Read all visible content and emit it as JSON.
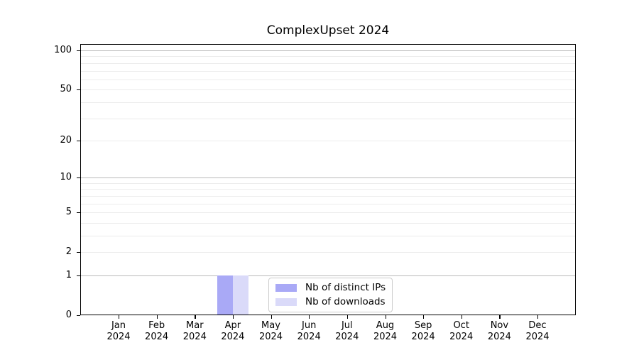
{
  "chart_data": {
    "type": "bar",
    "title": "ComplexUpset 2024",
    "xlabel": "",
    "ylabel": "",
    "categories": [
      {
        "month": "Jan",
        "year": "2024"
      },
      {
        "month": "Feb",
        "year": "2024"
      },
      {
        "month": "Mar",
        "year": "2024"
      },
      {
        "month": "Apr",
        "year": "2024"
      },
      {
        "month": "May",
        "year": "2024"
      },
      {
        "month": "Jun",
        "year": "2024"
      },
      {
        "month": "Jul",
        "year": "2024"
      },
      {
        "month": "Aug",
        "year": "2024"
      },
      {
        "month": "Sep",
        "year": "2024"
      },
      {
        "month": "Oct",
        "year": "2024"
      },
      {
        "month": "Nov",
        "year": "2024"
      },
      {
        "month": "Dec",
        "year": "2024"
      }
    ],
    "series": [
      {
        "name": "Nb of distinct IPs",
        "color": "#a9a9f6",
        "values": [
          0,
          0,
          0,
          1,
          0,
          0,
          0,
          0,
          0,
          0,
          0,
          0
        ]
      },
      {
        "name": "Nb of downloads",
        "color": "#dadaf9",
        "values": [
          0,
          0,
          0,
          1,
          0,
          0,
          0,
          0,
          0,
          0,
          0,
          0
        ]
      }
    ],
    "yscale": "log1p",
    "ylim": [
      0,
      100
    ],
    "yticks": [
      {
        "value": 0,
        "label": "0"
      },
      {
        "value": 1,
        "label": "1"
      },
      {
        "value": 2,
        "label": "2"
      },
      {
        "value": 5,
        "label": "5"
      },
      {
        "value": 10,
        "label": "10"
      },
      {
        "value": 20,
        "label": "20"
      },
      {
        "value": 50,
        "label": "50"
      },
      {
        "value": 100,
        "label": "100"
      }
    ],
    "major_gridline_values": [
      1,
      10,
      100
    ],
    "minor_gridline_values": [
      2,
      3,
      4,
      5,
      6,
      7,
      8,
      9,
      20,
      30,
      40,
      50,
      60,
      70,
      80,
      90
    ],
    "grid": "horizontal",
    "legend_position": "inside-bottom-center",
    "colors": {
      "grid_major": "#b9b9b9",
      "grid_minor": "#ececec",
      "axis": "#000000",
      "tick_text": "#000000",
      "legend_border": "#cccccc",
      "background": "#ffffff"
    }
  }
}
